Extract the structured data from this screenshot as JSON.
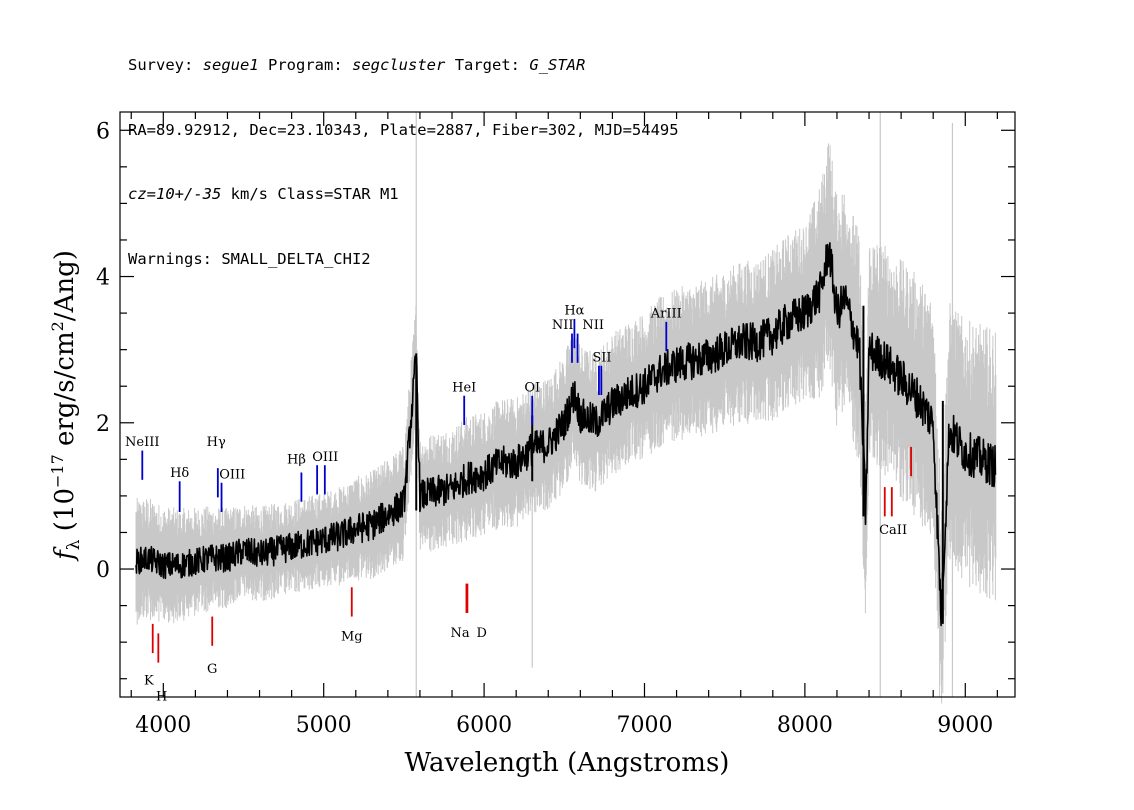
{
  "header": {
    "line1": {
      "survey_label": "Survey:",
      "survey": "segue1",
      "program_label": "Program:",
      "program": "segcluster",
      "target_label": "Target:",
      "target": "G_STAR"
    },
    "line2": "RA=89.92912, Dec=23.10343, Plate=2887, Fiber=302, MJD=54495",
    "line3": {
      "cz": "cz=10+/-35",
      "rest": " km/s Class=STAR M1"
    },
    "line4": "Warnings: SMALL_DELTA_CHI2"
  },
  "colors": {
    "flux": "#000000",
    "error": "#c8c8c8",
    "emission": "#0000cc",
    "absorption": "#dd0000"
  },
  "chart_data": {
    "type": "line",
    "xlabel": "Wavelength (Angstroms)",
    "ylabel_parts": {
      "f": "f",
      "sub": "λ",
      "open": " (10",
      "exp1": "−17",
      "mid": " erg/s/cm",
      "exp2": "2",
      "close": "/Ang)"
    },
    "xlim": [
      3730,
      9310
    ],
    "ylim": [
      -1.75,
      6.25
    ],
    "x_ticks": [
      4000,
      5000,
      6000,
      7000,
      8000,
      9000
    ],
    "y_ticks": [
      0,
      2,
      4,
      6
    ],
    "grid": false,
    "series": [
      {
        "role": "flux",
        "x": [
          3830,
          3900,
          4000,
          4100,
          4200,
          4300,
          4400,
          4500,
          4600,
          4700,
          4800,
          4900,
          5000,
          5100,
          5200,
          5300,
          5400,
          5500,
          5577,
          5600,
          5700,
          5800,
          5900,
          6000,
          6100,
          6200,
          6300,
          6400,
          6500,
          6563,
          6600,
          6700,
          6800,
          6900,
          7000,
          7100,
          7200,
          7300,
          7400,
          7500,
          7600,
          7700,
          7800,
          7900,
          8000,
          8100,
          8150,
          8200,
          8250,
          8300,
          8340,
          8380,
          8400,
          8500,
          8600,
          8700,
          8800,
          8850,
          8900,
          9000,
          9100,
          9190
        ],
        "y": [
          0.1,
          0.15,
          0.05,
          0.05,
          0.1,
          0.15,
          0.15,
          0.25,
          0.2,
          0.25,
          0.3,
          0.35,
          0.4,
          0.45,
          0.55,
          0.6,
          0.75,
          0.9,
          2.9,
          1.0,
          1.05,
          1.1,
          1.25,
          1.3,
          1.45,
          1.45,
          1.65,
          1.7,
          2.0,
          2.4,
          2.1,
          2.0,
          2.25,
          2.4,
          2.5,
          2.7,
          2.8,
          2.85,
          2.9,
          3.0,
          3.1,
          3.1,
          3.2,
          3.4,
          3.5,
          3.8,
          4.4,
          3.5,
          3.7,
          3.3,
          3.0,
          0.7,
          3.0,
          2.85,
          2.6,
          2.35,
          2.0,
          -0.65,
          1.9,
          1.6,
          1.5,
          1.4
        ]
      },
      {
        "role": "error",
        "x": [
          3830,
          4500,
          5000,
          5500,
          6000,
          6500,
          7000,
          7500,
          8000,
          8150,
          8500,
          9000,
          9190
        ],
        "y": [
          0.6,
          0.45,
          0.45,
          0.55,
          0.6,
          0.65,
          0.7,
          0.75,
          0.85,
          1.1,
          1.1,
          1.25,
          1.3
        ]
      }
    ],
    "annotations": {
      "emission": [
        {
          "label": "NeIII",
          "wavelength": 3869,
          "line_top": 1.62,
          "line_bottom": 1.22
        },
        {
          "label": "Hδ",
          "wavelength": 4102,
          "line_top": 1.2,
          "line_bottom": 0.78
        },
        {
          "label": "Hγ",
          "wavelength": 4340,
          "line_top": 1.38,
          "line_bottom": 0.98
        },
        {
          "label": "OIII",
          "wavelength": 4363,
          "line_top": 1.18,
          "line_bottom": 0.78
        },
        {
          "label": "Hβ",
          "wavelength": 4861,
          "line_top": 1.32,
          "line_bottom": 0.92
        },
        {
          "label": "OIII",
          "wavelength": 4959,
          "line_top": 1.42,
          "line_bottom": 1.02
        },
        {
          "label": "OIII",
          "wavelength": 5007,
          "line_top": 1.42,
          "line_bottom": 1.02
        },
        {
          "label": "HeI",
          "wavelength": 5876,
          "line_top": 2.37,
          "line_bottom": 1.97
        },
        {
          "label": "OI",
          "wavelength": 6300,
          "line_top": 2.37,
          "line_bottom": 1.97
        },
        {
          "label": "NII",
          "wavelength": 6548,
          "line_top": 3.22,
          "line_bottom": 2.82
        },
        {
          "label": "Hα",
          "wavelength": 6563,
          "line_top": 3.42,
          "line_bottom": 3.02
        },
        {
          "label": "NII",
          "wavelength": 6583,
          "line_top": 3.22,
          "line_bottom": 2.82
        },
        {
          "label": "SII",
          "wavelength": 6716,
          "line_top": 2.78,
          "line_bottom": 2.38
        },
        {
          "label": "SII",
          "wavelength": 6731,
          "line_top": 2.78,
          "line_bottom": 2.38
        },
        {
          "label": "ArIII",
          "wavelength": 7136,
          "line_top": 3.38,
          "line_bottom": 2.98
        }
      ],
      "absorption": [
        {
          "label": "K",
          "wavelength": 3934,
          "line_top": -0.75,
          "line_bottom": -1.15
        },
        {
          "label": "H",
          "wavelength": 3969,
          "line_top": -0.88,
          "line_bottom": -1.28
        },
        {
          "label": "G",
          "wavelength": 4305,
          "line_top": -0.65,
          "line_bottom": -1.05
        },
        {
          "label": "Mg",
          "wavelength": 5175,
          "line_top": -0.25,
          "line_bottom": -0.65
        },
        {
          "label": "Na",
          "wavelength": 5890,
          "line_top": -0.2,
          "line_bottom": -0.6
        },
        {
          "label": "D",
          "wavelength": 5896,
          "line_top": -0.2,
          "line_bottom": -0.6
        },
        {
          "label": "CaII",
          "wavelength": 8498,
          "line_top": 1.12,
          "line_bottom": 0.72
        },
        {
          "label": "CaII",
          "wavelength": 8542,
          "line_top": 1.12,
          "line_bottom": 0.72
        },
        {
          "label": "CaII",
          "wavelength": 8662,
          "line_top": 1.67,
          "line_bottom": 1.27
        }
      ],
      "labels": [
        {
          "text": "NeIII",
          "wavelength": 3869,
          "y": 1.68,
          "color": "emission"
        },
        {
          "text": "Hδ",
          "wavelength": 4102,
          "y": 1.26,
          "color": "emission"
        },
        {
          "text": "Hγ",
          "wavelength": 4330,
          "y": 1.68,
          "color": "emission"
        },
        {
          "text": "OIII",
          "wavelength": 4430,
          "y": 1.24,
          "color": "emission"
        },
        {
          "text": "Hβ",
          "wavelength": 4830,
          "y": 1.44,
          "color": "emission"
        },
        {
          "text": "OIII",
          "wavelength": 5010,
          "y": 1.48,
          "color": "emission"
        },
        {
          "text": "HeI",
          "wavelength": 5876,
          "y": 2.43,
          "color": "emission"
        },
        {
          "text": "OI",
          "wavelength": 6300,
          "y": 2.43,
          "color": "emission"
        },
        {
          "text": "NII",
          "wavelength": 6490,
          "y": 3.28,
          "color": "emission"
        },
        {
          "text": "Hα",
          "wavelength": 6563,
          "y": 3.48,
          "color": "emission"
        },
        {
          "text": "NII",
          "wavelength": 6680,
          "y": 3.28,
          "color": "emission"
        },
        {
          "text": "SII",
          "wavelength": 6735,
          "y": 2.84,
          "color": "emission"
        },
        {
          "text": "ArIII",
          "wavelength": 7136,
          "y": 3.44,
          "color": "emission"
        },
        {
          "text": "K",
          "wavelength": 3910,
          "y": -1.58,
          "color": "absorption"
        },
        {
          "text": "H",
          "wavelength": 3990,
          "y": -1.8,
          "color": "absorption"
        },
        {
          "text": "G",
          "wavelength": 4305,
          "y": -1.42,
          "color": "absorption"
        },
        {
          "text": "Mg",
          "wavelength": 5175,
          "y": -0.98,
          "color": "absorption"
        },
        {
          "text": "Na",
          "wavelength": 5850,
          "y": -0.93,
          "color": "absorption"
        },
        {
          "text": "D",
          "wavelength": 5985,
          "y": -0.93,
          "color": "absorption"
        },
        {
          "text": "CaII",
          "wavelength": 8550,
          "y": 0.48,
          "color": "absorption"
        }
      ]
    }
  }
}
